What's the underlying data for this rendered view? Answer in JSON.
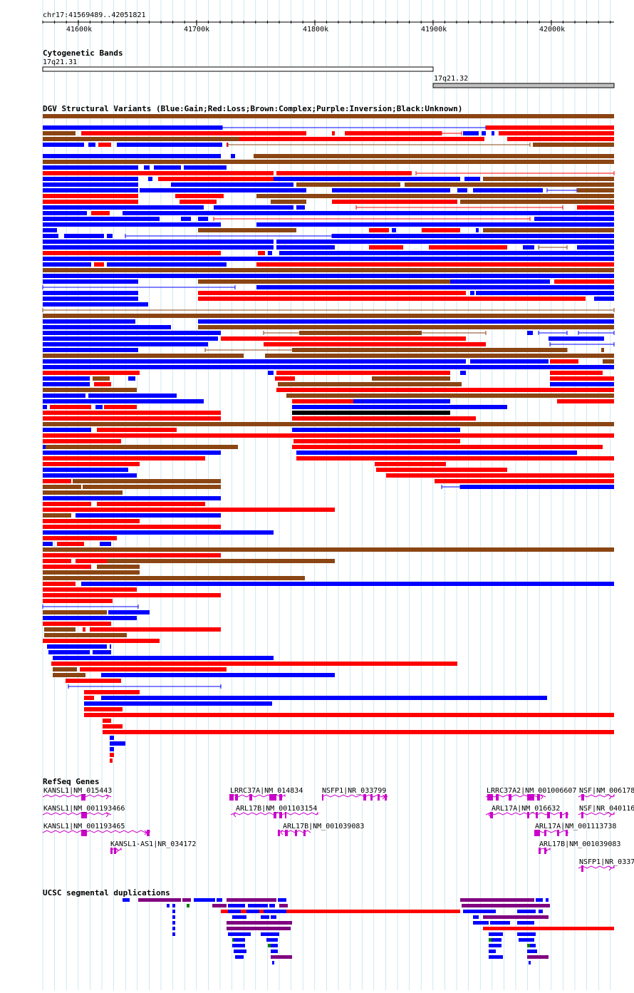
{
  "locus": "chr17:41569489..42051821",
  "ruler": {
    "ticks": [
      "41600k",
      "41700k",
      "41800k",
      "41900k",
      "42000k"
    ]
  },
  "tracks": {
    "cytoband": {
      "title": "Cytogenetic Bands",
      "bands": [
        "17q21.31",
        "17q21.32"
      ]
    },
    "dgv": {
      "title": "DGV Structural Variants (Blue:Gain;Red:Loss;Brown:Complex;Purple:Inversion;Black:Unknown)"
    },
    "refseq": {
      "title": "RefSeq Genes",
      "genes": [
        "KANSL1|NM_015443",
        "KANSL1|NM_001193466",
        "KANSL1|NM_001193465",
        "KANSL1-AS1|NR_034172",
        "LRRC37A|NM_014834",
        "ARL17B|NM_001103154",
        "ARL17B|NM_001039083",
        "NSFP1|NR_033799",
        "LRRC37A2|NM_001006607",
        "ARL17A|NM_016632",
        "ARL17A|NM_001113738",
        "ARL17B|NM_001039083",
        "NSF|NM_006178",
        "NSF|NR_040116",
        "NSFP1|NR_0337"
      ]
    },
    "segdups": {
      "title": "UCSC segmental duplications"
    }
  },
  "colors": {
    "gain": "#0000ff",
    "loss": "#ff0000",
    "complex": "#8b4513",
    "inversion": "#800080",
    "unknown": "#000000",
    "gene": "#cc00cc",
    "grid": "#add8e6",
    "segdup_purple": "#800080",
    "segdup_green": "#008000",
    "band": "#c0c0c0"
  }
}
